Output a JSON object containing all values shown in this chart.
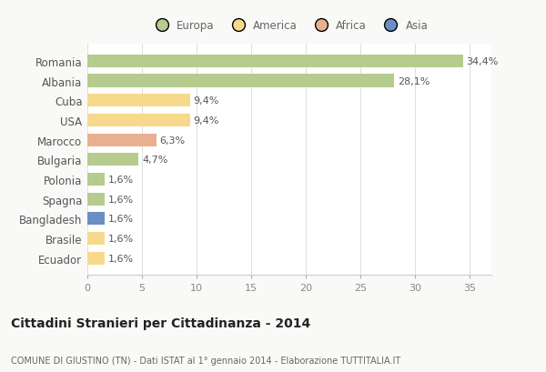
{
  "countries": [
    "Romania",
    "Albania",
    "Cuba",
    "USA",
    "Marocco",
    "Bulgaria",
    "Polonia",
    "Spagna",
    "Bangladesh",
    "Brasile",
    "Ecuador"
  ],
  "values": [
    34.4,
    28.1,
    9.4,
    9.4,
    6.3,
    4.7,
    1.6,
    1.6,
    1.6,
    1.6,
    1.6
  ],
  "labels": [
    "34,4%",
    "28,1%",
    "9,4%",
    "9,4%",
    "6,3%",
    "4,7%",
    "1,6%",
    "1,6%",
    "1,6%",
    "1,6%",
    "1,6%"
  ],
  "colors": [
    "#b5cc8e",
    "#b5cc8e",
    "#f7d98b",
    "#f7d98b",
    "#e8b090",
    "#b5cc8e",
    "#b5cc8e",
    "#b5cc8e",
    "#6b8fc4",
    "#f7d98b",
    "#f7d98b"
  ],
  "legend_labels": [
    "Europa",
    "America",
    "Africa",
    "Asia"
  ],
  "legend_colors": [
    "#b5cc8e",
    "#f7d98b",
    "#e8b090",
    "#6b8fc4"
  ],
  "title": "Cittadini Stranieri per Cittadinanza - 2014",
  "subtitle": "COMUNE DI GIUSTINO (TN) - Dati ISTAT al 1° gennaio 2014 - Elaborazione TUTTITALIA.IT",
  "xlim": [
    0,
    37
  ],
  "xticks": [
    0,
    5,
    10,
    15,
    20,
    25,
    30,
    35
  ],
  "background_color": "#f9f9f7",
  "bar_background": "#ffffff",
  "grid_color": "#e0e0e0"
}
